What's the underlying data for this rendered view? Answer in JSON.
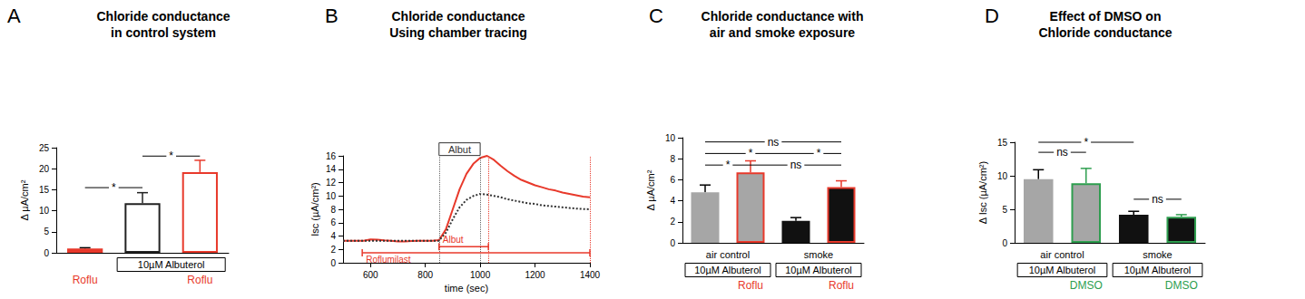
{
  "chart_data": [
    {
      "panel": "A",
      "type": "bar",
      "title": "Chloride conductance\nin control system",
      "y_label": "Δ µA/cm²",
      "categories": [
        "Roflu",
        null,
        "Roflu"
      ],
      "label_color": "#e8392b",
      "values": [
        1.0,
        11.8,
        19.2
      ],
      "errors": [
        0.2,
        2.5,
        2.8
      ],
      "colors": [
        "#e8392b",
        "#ffffff",
        "#ffffff"
      ],
      "edge_colors": [
        "#e8392b",
        "#222222",
        "#e8392b"
      ],
      "groups": [
        {
          "label": "10µM Albuterol",
          "from": 1,
          "to": 2,
          "boxed": true
        }
      ],
      "significance": [
        {
          "from": 0,
          "to": 1,
          "y": 15.5,
          "label": "*"
        },
        {
          "from": 1,
          "to": 2,
          "y": 23,
          "label": "*"
        }
      ],
      "ylim": [
        0,
        25
      ],
      "yticks": [
        0,
        5,
        10,
        15,
        20,
        25
      ],
      "grid": false
    },
    {
      "panel": "B",
      "type": "line",
      "title": "Chloride conductance\nUsing chamber tracing",
      "x_label": "time (sec)",
      "y_label": "Isc (µA/cm²)",
      "x": [
        500,
        525,
        550,
        575,
        600,
        625,
        650,
        675,
        700,
        725,
        750,
        775,
        800,
        825,
        850,
        875,
        900,
        925,
        950,
        975,
        1000,
        1025,
        1050,
        1075,
        1100,
        1125,
        1150,
        1175,
        1200,
        1225,
        1250,
        1275,
        1300,
        1325,
        1350,
        1375,
        1400
      ],
      "series": [
        {
          "color": "#e8392b",
          "line_style": "solid",
          "values": [
            3.3,
            3.3,
            3.3,
            3.3,
            3.5,
            3.45,
            3.35,
            3.3,
            3.2,
            3.2,
            3.25,
            3.3,
            3.3,
            3.3,
            3.4,
            5,
            8,
            11,
            13.3,
            14.8,
            15.7,
            16,
            15.4,
            14.5,
            13.7,
            13,
            12.4,
            12,
            11.6,
            11.3,
            11,
            10.8,
            10.5,
            10.3,
            10.1,
            9.9,
            9.8
          ]
        },
        {
          "color": "#333333",
          "line_style": "dotted",
          "values": [
            3.3,
            3.3,
            3.3,
            3.3,
            3.3,
            3.3,
            3.3,
            3.3,
            3.3,
            3.3,
            3.3,
            3.3,
            3.3,
            3.3,
            3.3,
            4.5,
            6.5,
            8.3,
            9.4,
            10,
            10.3,
            10.2,
            10,
            9.8,
            9.5,
            9.3,
            9.1,
            8.9,
            8.8,
            8.6,
            8.5,
            8.4,
            8.3,
            8.2,
            8.1,
            8.05,
            8.0
          ]
        }
      ],
      "annotations": [
        {
          "label": "Albut",
          "from": 850,
          "to": 1000,
          "y": 17,
          "color": "#333333",
          "boxed": true
        },
        {
          "label": "Roflumilast",
          "from": 570,
          "to": 1400,
          "y": 1.5,
          "color": "#e8392b",
          "position": "below"
        },
        {
          "label": "Albut",
          "from": 850,
          "to": 1030,
          "y": 2.4,
          "color": "#e8392b",
          "position": "above"
        }
      ],
      "vlines": [
        {
          "x": 850,
          "color": "#666666"
        },
        {
          "x": 1000,
          "color": "#666666"
        },
        {
          "x": 1030,
          "color": "#e8392b"
        },
        {
          "x": 1400,
          "color": "#e8392b"
        }
      ],
      "xlim": [
        500,
        1400
      ],
      "xticks": [
        600,
        800,
        1000,
        1200,
        1400
      ],
      "ylim": [
        0,
        16
      ],
      "yticks": [
        0,
        2,
        4,
        6,
        8,
        10,
        12,
        14,
        16
      ],
      "grid": false
    },
    {
      "panel": "C",
      "type": "bar",
      "title": "Chloride conductance with\nair and smoke exposure",
      "y_label": "Δ µA/cm²",
      "categories": [
        null,
        "Roflu",
        null,
        "Roflu"
      ],
      "label_color": "#e8392b",
      "values": [
        4.8,
        6.7,
        2.1,
        5.3
      ],
      "errors": [
        0.7,
        1.1,
        0.3,
        0.6
      ],
      "colors": [
        "#a6a6a6",
        "#a6a6a6",
        "#111111",
        "#111111"
      ],
      "edge_colors": [
        "#a6a6a6",
        "#e8392b",
        "#111111",
        "#e8392b"
      ],
      "groups": [
        {
          "label": "air control",
          "from": 0,
          "to": 1
        },
        {
          "label": "10µM Albuterol",
          "from": 0,
          "to": 1,
          "boxed": true
        },
        {
          "label": "smoke",
          "from": 2,
          "to": 3
        },
        {
          "label": "10µM Albuterol",
          "from": 2,
          "to": 3,
          "boxed": true
        }
      ],
      "significance": [
        {
          "from": 0,
          "to": 3,
          "y": 9.6,
          "label": "ns"
        },
        {
          "from": 0,
          "to": 2,
          "y": 8.5,
          "label": "*"
        },
        {
          "from": 2,
          "to": 3,
          "y": 8.5,
          "label": "*"
        },
        {
          "from": 0,
          "to": 1,
          "y": 7.4,
          "label": "*"
        },
        {
          "from": 1,
          "to": 3,
          "y": 7.4,
          "label": "ns"
        }
      ],
      "ylim": [
        0,
        10
      ],
      "yticks": [
        0,
        2,
        4,
        6,
        8,
        10
      ],
      "grid": false
    },
    {
      "panel": "D",
      "type": "bar",
      "title": "Effect of DMSO on\nChloride conductance",
      "y_label": "Δ Isc (µA/cm²)",
      "categories": [
        null,
        "DMSO",
        null,
        "DMSO"
      ],
      "label_color": "#2e9e4f",
      "values": [
        9.5,
        8.9,
        4.2,
        3.9
      ],
      "errors": [
        1.4,
        2.2,
        0.5,
        0.3
      ],
      "colors": [
        "#a6a6a6",
        "#a6a6a6",
        "#111111",
        "#111111"
      ],
      "edge_colors": [
        "#a6a6a6",
        "#2e9e4f",
        "#111111",
        "#2e9e4f"
      ],
      "groups": [
        {
          "label": "air control",
          "from": 0,
          "to": 1
        },
        {
          "label": "10µM Albuterol",
          "from": 0,
          "to": 1,
          "boxed": true
        },
        {
          "label": "smoke",
          "from": 2,
          "to": 3
        },
        {
          "label": "10µM Albuterol",
          "from": 2,
          "to": 3,
          "boxed": true
        }
      ],
      "significance": [
        {
          "from": 0,
          "to": 1,
          "y": 13.5,
          "label": "ns"
        },
        {
          "from": 2,
          "to": 3,
          "y": 6.5,
          "label": "ns"
        },
        {
          "from": 0,
          "to": 2,
          "y": 15,
          "label": "*"
        }
      ],
      "ylim": [
        0,
        15
      ],
      "yticks": [
        0,
        5,
        10,
        15
      ],
      "grid": false
    }
  ]
}
